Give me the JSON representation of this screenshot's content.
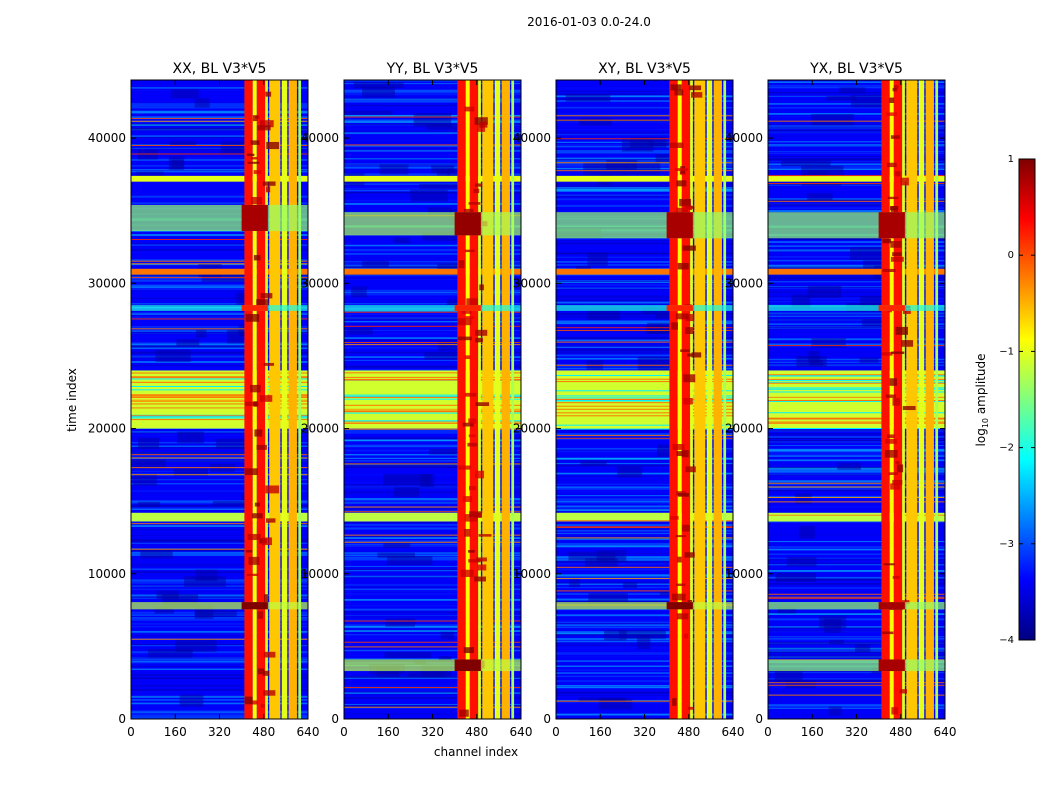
{
  "chart_data": {
    "type": "heatmap",
    "suptitle": "2016-01-03 0.0-24.0",
    "panels": [
      {
        "title": "XX, BL V3*V5",
        "polarization": "XX",
        "band_events": [
          {
            "center": 7800,
            "width": 500,
            "value": 1.0
          },
          {
            "center": 28300,
            "width": 400,
            "value": 0.2
          },
          {
            "center": 34500,
            "width": 1800,
            "value": 0.8
          }
        ]
      },
      {
        "title": "YY, BL V3*V5",
        "polarization": "YY",
        "band_events": [
          {
            "center": 3700,
            "width": 800,
            "value": 1.0
          },
          {
            "center": 28300,
            "width": 400,
            "value": 0.2
          },
          {
            "center": 34100,
            "width": 1600,
            "value": 0.9
          }
        ]
      },
      {
        "title": "XY, BL V3*V5",
        "polarization": "XY",
        "band_events": [
          {
            "center": 7800,
            "width": 500,
            "value": 1.0
          },
          {
            "center": 28300,
            "width": 400,
            "value": 0.2
          },
          {
            "center": 34000,
            "width": 1800,
            "value": 0.8
          }
        ]
      },
      {
        "title": "YX, BL V3*V5",
        "polarization": "YX",
        "band_events": [
          {
            "center": 3700,
            "width": 800,
            "value": 0.8
          },
          {
            "center": 7800,
            "width": 500,
            "value": 0.8
          },
          {
            "center": 28300,
            "width": 400,
            "value": 0.2
          },
          {
            "center": 34000,
            "width": 1800,
            "value": 0.8
          }
        ]
      }
    ],
    "xlabel": "channel index",
    "ylabel": "time index",
    "xlim": [
      0,
      640
    ],
    "ylim": [
      0,
      44000
    ],
    "xticks": [
      0,
      160,
      320,
      480,
      640
    ],
    "xtick_labels": [
      "0",
      "160",
      "320",
      "480",
      "640"
    ],
    "yticks": [
      0,
      10000,
      20000,
      30000,
      40000
    ],
    "ytick_labels": [
      "0",
      "10000",
      "20000",
      "30000",
      "40000"
    ],
    "colorbar": {
      "label_text": "log",
      "label_sub": "10",
      "label_rest": " amplitude",
      "range": [
        -4,
        1
      ],
      "ticks": [
        -4,
        -3,
        -2,
        -1,
        0,
        1
      ],
      "tick_labels": [
        "−4",
        "−3",
        "−2",
        "−1",
        "0",
        "1"
      ],
      "colormap": "jet",
      "colors": [
        "#00007f",
        "#0000ff",
        "#007fff",
        "#00ffff",
        "#7fff7f",
        "#ffff00",
        "#ff7f00",
        "#ff0000",
        "#7f0000"
      ]
    },
    "bright_channel_bands": [
      {
        "x0": 410,
        "x1": 440,
        "value": 0.3
      },
      {
        "x0": 440,
        "x1": 455,
        "value": -0.9
      },
      {
        "x0": 455,
        "x1": 485,
        "value": 0.3
      },
      {
        "x0": 485,
        "x1": 495,
        "value": -1.0
      },
      {
        "x0": 500,
        "x1": 540,
        "value": -0.6
      },
      {
        "x0": 545,
        "x1": 565,
        "value": -1.0
      },
      {
        "x0": 570,
        "x1": 600,
        "value": -0.5
      },
      {
        "x0": 605,
        "x1": 615,
        "value": -1.3
      }
    ],
    "rfi_time_bands": [
      {
        "y0": 20000,
        "y1": 24000,
        "value": -1.1
      },
      {
        "y0": 13600,
        "y1": 14200,
        "value": -1.2
      },
      {
        "y0": 37000,
        "y1": 37400,
        "value": -1.0
      },
      {
        "y0": 30600,
        "y1": 31000,
        "value": -0.2
      }
    ],
    "background_value": -3.4
  }
}
